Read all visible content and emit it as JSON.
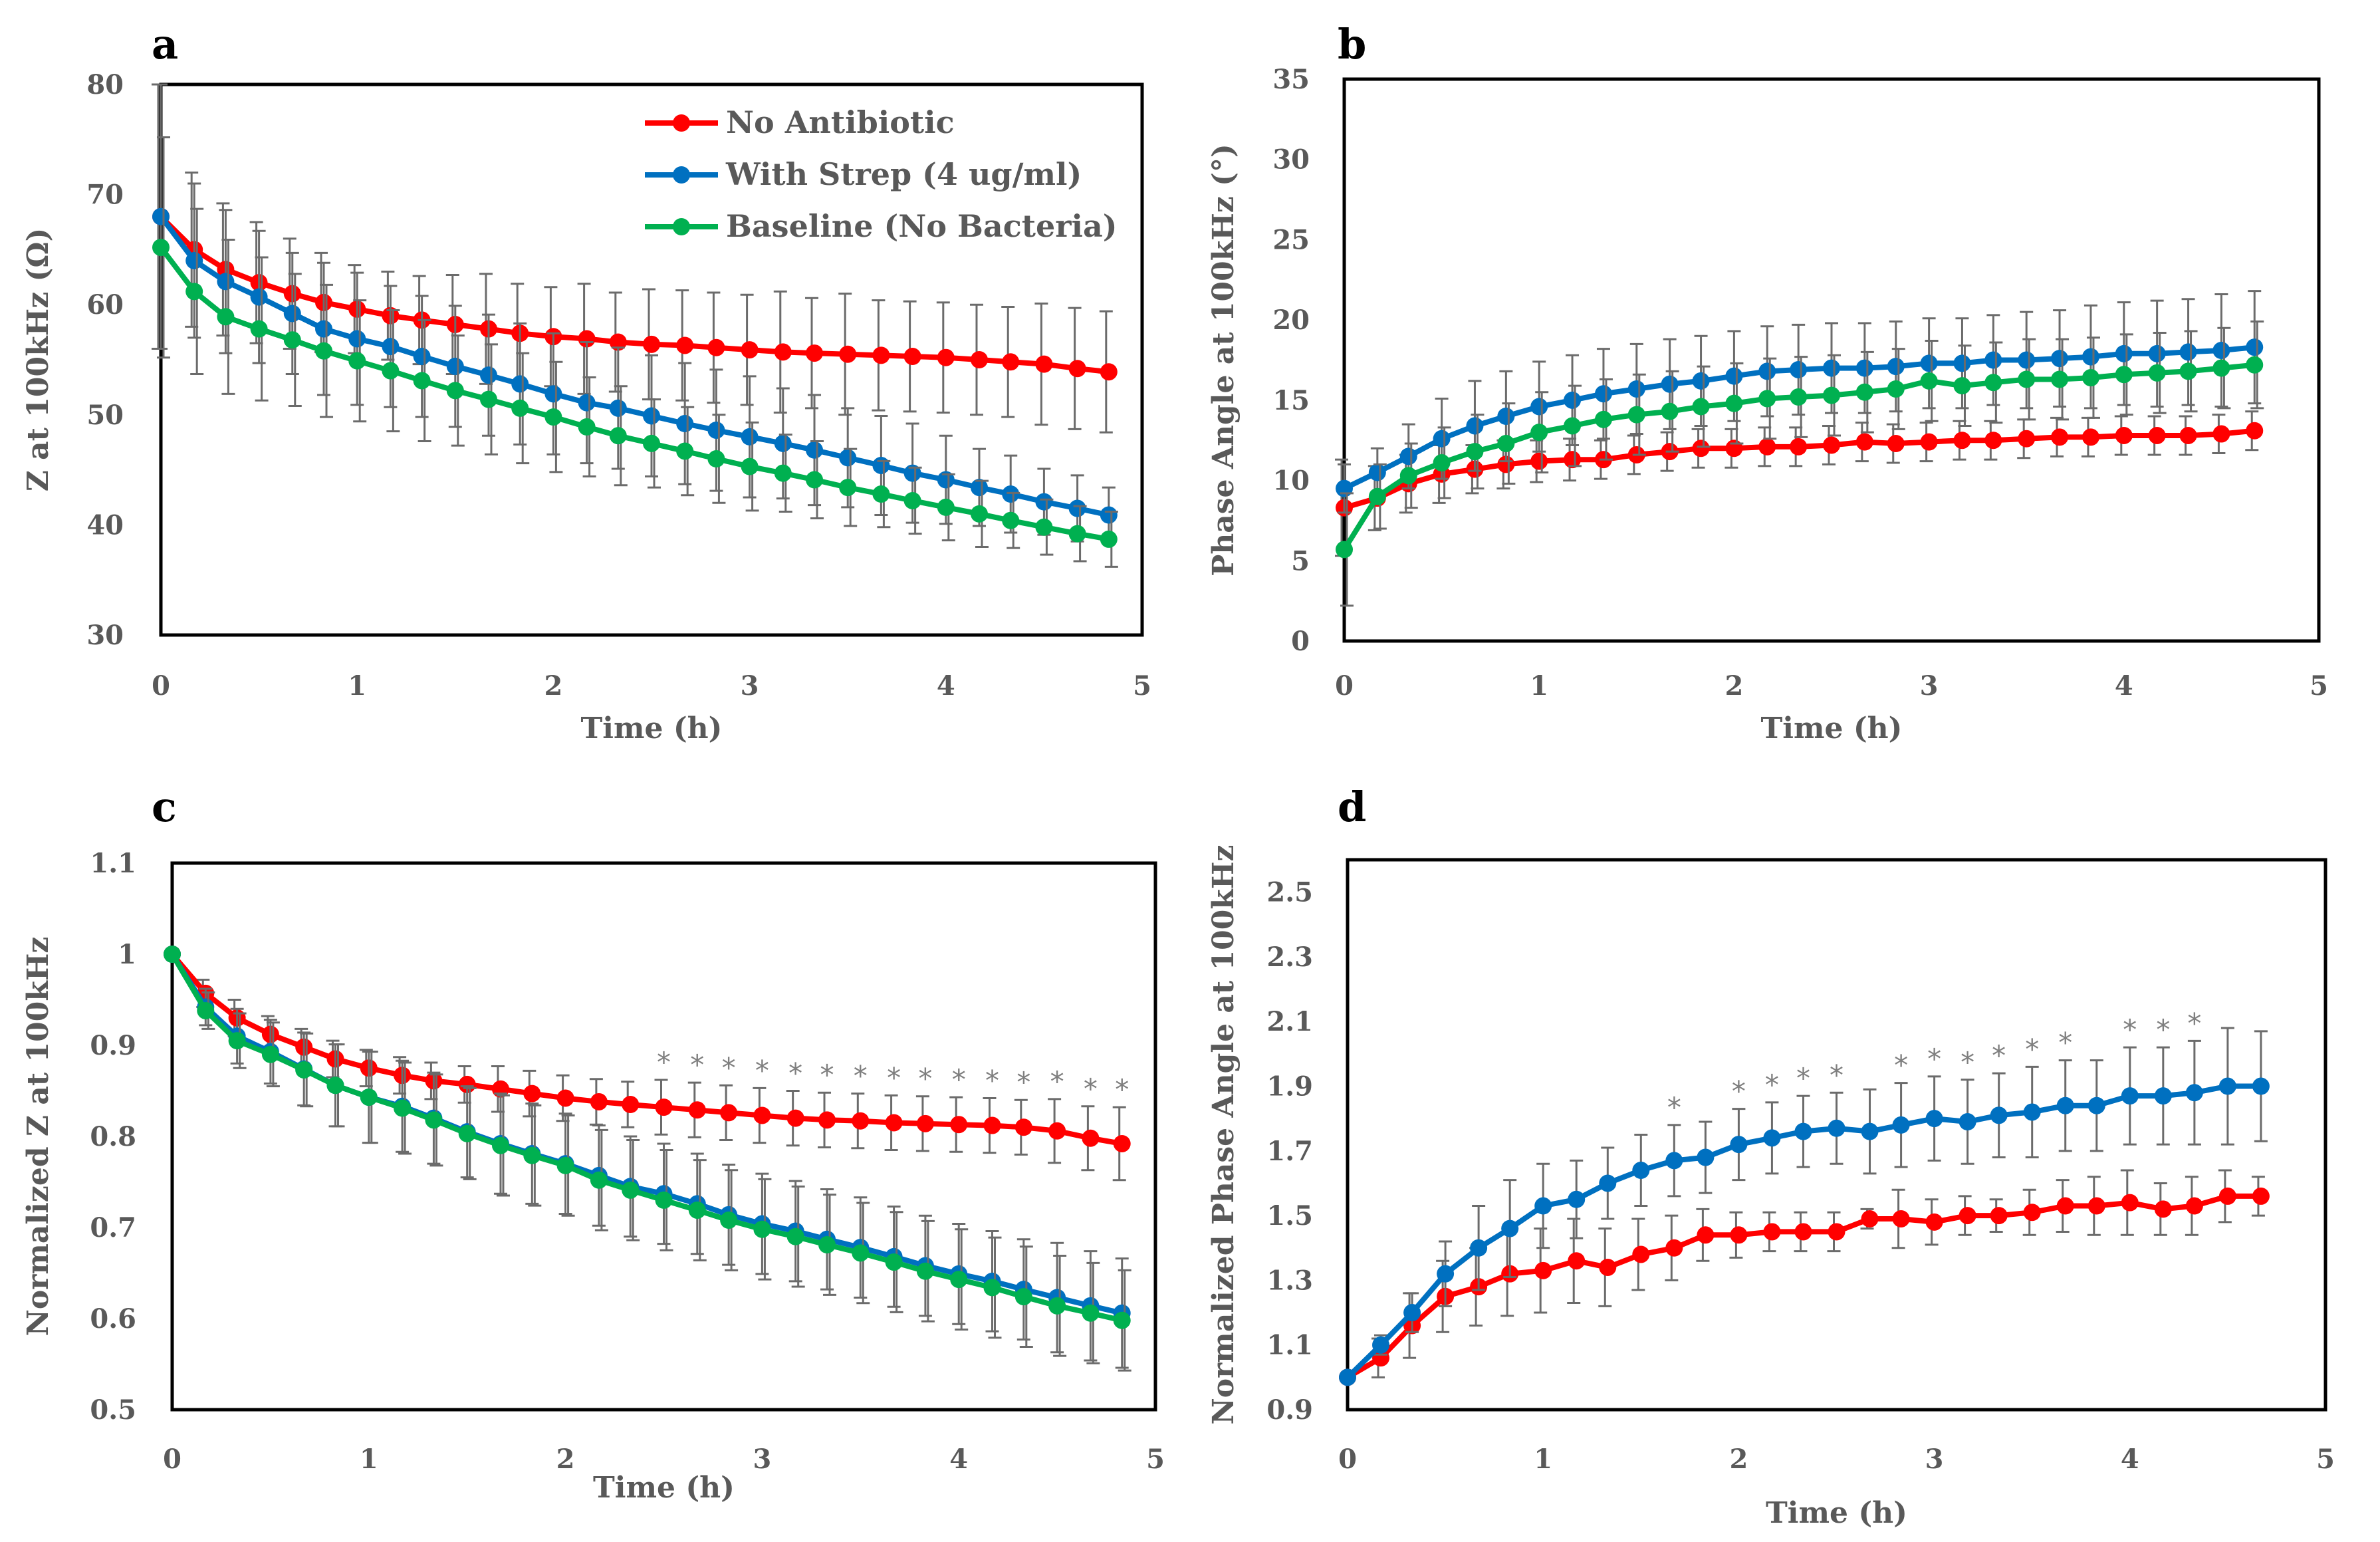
{
  "colors": {
    "no_antibiotic": "#ff0000",
    "with_strep": "#0070c0",
    "baseline": "#00b050",
    "error_bar": "#6b6b6b",
    "text": "#595959"
  },
  "chart_data": [
    {
      "panel": "a",
      "type": "line",
      "title": "",
      "xlabel": "Time (h)",
      "ylabel": "Z at 100kHz (Ω)",
      "xlim": [
        0,
        5
      ],
      "ylim": [
        30,
        80
      ],
      "xticks": [
        "0",
        "1",
        "2",
        "3",
        "4",
        "5"
      ],
      "yticks": [
        "30",
        "40",
        "50",
        "60",
        "70",
        "80"
      ],
      "grid": false,
      "legend_position": "top-center",
      "x": [
        0,
        0.17,
        0.33,
        0.5,
        0.67,
        0.83,
        1.0,
        1.17,
        1.33,
        1.5,
        1.67,
        1.83,
        2.0,
        2.17,
        2.33,
        2.5,
        2.67,
        2.83,
        3.0,
        3.17,
        3.33,
        3.5,
        3.67,
        3.83,
        4.0,
        4.17,
        4.33,
        4.5,
        4.67,
        4.83
      ],
      "series": [
        {
          "name": "No Antibiotic",
          "color_key": "no_antibiotic",
          "values": [
            68,
            65.0,
            63.2,
            62.0,
            61.0,
            60.2,
            59.6,
            59.0,
            58.6,
            58.2,
            57.8,
            57.4,
            57.1,
            56.9,
            56.6,
            56.4,
            56.3,
            56.1,
            55.9,
            55.7,
            55.6,
            55.5,
            55.4,
            55.3,
            55.2,
            55.0,
            54.8,
            54.6,
            54.2,
            53.9
          ],
          "errors": [
            12,
            7,
            6,
            5.5,
            5,
            4.5,
            4,
            4,
            4,
            4.5,
            5,
            4.5,
            4.5,
            5,
            4.5,
            5,
            5,
            5,
            5,
            5.5,
            5,
            5.5,
            5,
            5,
            5,
            5,
            5,
            5.5,
            5.5,
            5.5
          ]
        },
        {
          "name": "With Strep (4 ug/ml)",
          "color_key": "with_strep",
          "values": [
            68,
            64.0,
            62.1,
            60.7,
            59.2,
            57.8,
            56.9,
            56.2,
            55.3,
            54.4,
            53.6,
            52.8,
            51.9,
            51.1,
            50.6,
            49.9,
            49.2,
            48.6,
            48.0,
            47.4,
            46.8,
            46.1,
            45.4,
            44.7,
            44.1,
            43.4,
            42.8,
            42.1,
            41.5,
            40.9
          ],
          "errors": [
            12,
            7,
            6.5,
            6,
            5.5,
            6,
            6,
            5.5,
            5.5,
            5.5,
            5.5,
            5.5,
            5.5,
            5.5,
            5.5,
            5.5,
            5.5,
            5.5,
            5.5,
            5,
            5,
            4.5,
            4.5,
            4.5,
            4,
            3.5,
            3.5,
            3,
            3,
            2.5
          ]
        },
        {
          "name": "Baseline (No Bacteria)",
          "color_key": "baseline",
          "values": [
            65.2,
            61.2,
            58.9,
            57.8,
            56.8,
            55.8,
            54.9,
            54.0,
            53.1,
            52.2,
            51.4,
            50.6,
            49.8,
            48.9,
            48.1,
            47.4,
            46.7,
            46.0,
            45.3,
            44.7,
            44.1,
            43.4,
            42.8,
            42.2,
            41.6,
            41.0,
            40.4,
            39.8,
            39.2,
            38.7
          ],
          "errors": [
            10,
            7.5,
            7,
            6.5,
            6,
            6,
            5.5,
            5.5,
            5.5,
            5,
            5,
            5,
            5,
            4.5,
            4.5,
            4,
            4,
            4,
            4,
            3.5,
            3.5,
            3.5,
            3,
            3,
            3,
            3,
            2.5,
            2.5,
            2.5,
            2.5
          ]
        }
      ],
      "legend": [
        "No Antibiotic",
        "With Strep (4 ug/ml)",
        "Baseline (No Bacteria)"
      ]
    },
    {
      "panel": "b",
      "type": "line",
      "title": "",
      "xlabel": "Time (h)",
      "ylabel": "Phase Angle at 100kHz (°)",
      "xlim": [
        0,
        5
      ],
      "ylim": [
        0,
        35
      ],
      "xticks": [
        "0",
        "1",
        "2",
        "3",
        "4",
        "5"
      ],
      "yticks": [
        "0",
        "5",
        "10",
        "15",
        "20",
        "25",
        "30",
        "35"
      ],
      "grid": false,
      "x": [
        0,
        0.17,
        0.33,
        0.5,
        0.67,
        0.83,
        1.0,
        1.17,
        1.33,
        1.5,
        1.67,
        1.83,
        2.0,
        2.17,
        2.33,
        2.5,
        2.67,
        2.83,
        3.0,
        3.17,
        3.33,
        3.5,
        3.67,
        3.83,
        4.0,
        4.17,
        4.33,
        4.5,
        4.67
      ],
      "series": [
        {
          "name": "No Antibiotic",
          "color_key": "no_antibiotic",
          "values": [
            8.3,
            8.9,
            9.8,
            10.4,
            10.7,
            11.0,
            11.2,
            11.3,
            11.3,
            11.6,
            11.8,
            12.0,
            12.0,
            12.1,
            12.1,
            12.2,
            12.4,
            12.3,
            12.4,
            12.5,
            12.5,
            12.6,
            12.7,
            12.7,
            12.8,
            12.8,
            12.8,
            12.9,
            13.1
          ],
          "errors": [
            3,
            2,
            1.8,
            1.8,
            1.5,
            1.5,
            1.3,
            1.3,
            1.2,
            1.2,
            1.2,
            1.2,
            1.2,
            1.2,
            1.2,
            1.2,
            1.2,
            1.2,
            1.2,
            1.2,
            1.2,
            1.2,
            1.2,
            1.2,
            1.2,
            1.2,
            1.2,
            1.2,
            1.2
          ]
        },
        {
          "name": "With Strep (4 ug/ml)",
          "color_key": "with_strep",
          "values": [
            9.5,
            10.5,
            11.5,
            12.6,
            13.4,
            14.0,
            14.6,
            15.0,
            15.4,
            15.7,
            16.0,
            16.2,
            16.5,
            16.8,
            16.9,
            17.0,
            17.0,
            17.1,
            17.3,
            17.3,
            17.5,
            17.5,
            17.6,
            17.7,
            17.9,
            17.9,
            18.0,
            18.1,
            18.3
          ],
          "errors": [
            1.5,
            1.5,
            2,
            2.5,
            2.8,
            2.8,
            2.8,
            2.8,
            2.8,
            2.8,
            2.8,
            2.8,
            2.8,
            2.8,
            2.8,
            2.8,
            2.8,
            2.8,
            2.8,
            2.8,
            2.8,
            3,
            3,
            3.2,
            3.2,
            3.3,
            3.3,
            3.5,
            3.5
          ]
        },
        {
          "name": "Baseline (No Bacteria)",
          "color_key": "baseline",
          "values": [
            5.7,
            9.0,
            10.3,
            11.1,
            11.8,
            12.3,
            13.0,
            13.4,
            13.8,
            14.1,
            14.3,
            14.6,
            14.8,
            15.1,
            15.2,
            15.3,
            15.5,
            15.7,
            16.2,
            15.9,
            16.1,
            16.3,
            16.3,
            16.4,
            16.6,
            16.7,
            16.8,
            17.0,
            17.2
          ],
          "errors": [
            3.5,
            2,
            2,
            2.2,
            2.3,
            2.5,
            2.5,
            2.5,
            2.5,
            2.5,
            2.5,
            2.5,
            2.5,
            2.5,
            2.5,
            2.5,
            2.5,
            2.5,
            2.5,
            2.5,
            2.5,
            2.5,
            2.5,
            2.5,
            2.5,
            2.5,
            2.5,
            2.5,
            2.7
          ]
        }
      ]
    },
    {
      "panel": "c",
      "type": "line",
      "title": "",
      "xlabel": "Time (h)",
      "ylabel": "Normalized Z at 100kHz",
      "xlim": [
        0,
        5
      ],
      "ylim": [
        0.5,
        1.1
      ],
      "xticks": [
        "0",
        "1",
        "2",
        "3",
        "4",
        "5"
      ],
      "yticks": [
        "0.5",
        "0.6",
        "0.7",
        "0.8",
        "0.9",
        "1",
        "1.1"
      ],
      "grid": false,
      "x": [
        0,
        0.17,
        0.33,
        0.5,
        0.67,
        0.83,
        1.0,
        1.17,
        1.33,
        1.5,
        1.67,
        1.83,
        2.0,
        2.17,
        2.33,
        2.5,
        2.67,
        2.83,
        3.0,
        3.17,
        3.33,
        3.5,
        3.67,
        3.83,
        4.0,
        4.17,
        4.33,
        4.5,
        4.67,
        4.83
      ],
      "series": [
        {
          "name": "No Antibiotic",
          "color_key": "no_antibiotic",
          "values": [
            1.0,
            0.957,
            0.93,
            0.912,
            0.898,
            0.885,
            0.875,
            0.867,
            0.861,
            0.857,
            0.852,
            0.847,
            0.842,
            0.838,
            0.835,
            0.832,
            0.829,
            0.826,
            0.823,
            0.82,
            0.818,
            0.817,
            0.815,
            0.814,
            0.813,
            0.812,
            0.81,
            0.806,
            0.798,
            0.792
          ],
          "errors": [
            0,
            0.015,
            0.02,
            0.02,
            0.02,
            0.02,
            0.02,
            0.02,
            0.02,
            0.02,
            0.025,
            0.025,
            0.025,
            0.025,
            0.025,
            0.03,
            0.03,
            0.03,
            0.03,
            0.03,
            0.03,
            0.03,
            0.03,
            0.03,
            0.03,
            0.03,
            0.03,
            0.035,
            0.035,
            0.04
          ]
        },
        {
          "name": "With Strep (4 ug/ml)",
          "color_key": "with_strep",
          "values": [
            1.0,
            0.942,
            0.91,
            0.893,
            0.874,
            0.856,
            0.843,
            0.833,
            0.82,
            0.805,
            0.792,
            0.781,
            0.77,
            0.757,
            0.745,
            0.737,
            0.726,
            0.714,
            0.704,
            0.696,
            0.687,
            0.678,
            0.668,
            0.658,
            0.649,
            0.641,
            0.632,
            0.623,
            0.614,
            0.606
          ],
          "errors": [
            0,
            0.02,
            0.03,
            0.035,
            0.04,
            0.045,
            0.05,
            0.05,
            0.05,
            0.05,
            0.055,
            0.055,
            0.055,
            0.055,
            0.055,
            0.055,
            0.055,
            0.055,
            0.055,
            0.055,
            0.055,
            0.055,
            0.055,
            0.055,
            0.055,
            0.055,
            0.055,
            0.06,
            0.06,
            0.06
          ]
        },
        {
          "name": "Baseline (No Bacteria)",
          "color_key": "baseline",
          "values": [
            1.0,
            0.938,
            0.905,
            0.89,
            0.873,
            0.856,
            0.843,
            0.831,
            0.818,
            0.803,
            0.79,
            0.779,
            0.768,
            0.752,
            0.741,
            0.73,
            0.719,
            0.708,
            0.698,
            0.69,
            0.681,
            0.672,
            0.662,
            0.652,
            0.643,
            0.634,
            0.624,
            0.614,
            0.606,
            0.598
          ],
          "errors": [
            0,
            0.02,
            0.03,
            0.035,
            0.04,
            0.045,
            0.05,
            0.05,
            0.05,
            0.05,
            0.055,
            0.055,
            0.055,
            0.055,
            0.055,
            0.055,
            0.055,
            0.055,
            0.055,
            0.055,
            0.055,
            0.055,
            0.055,
            0.055,
            0.055,
            0.055,
            0.055,
            0.055,
            0.055,
            0.055
          ]
        }
      ],
      "annotations": {
        "marker": "*",
        "series_index": 0,
        "x": [
          2.5,
          2.67,
          2.83,
          3.0,
          3.17,
          3.33,
          3.5,
          3.67,
          3.83,
          4.0,
          4.17,
          4.33,
          4.5,
          4.67,
          4.83
        ]
      }
    },
    {
      "panel": "d",
      "type": "line",
      "title": "",
      "xlabel": "Time (h)",
      "ylabel": "Normalized Phase Angle at 100kHz",
      "xlim": [
        0,
        5
      ],
      "ylim": [
        0.9,
        2.6
      ],
      "xticks": [
        "0",
        "1",
        "2",
        "3",
        "4",
        "5"
      ],
      "yticks": [
        "0.9",
        "1.1",
        "1.3",
        "1.5",
        "1.7",
        "1.9",
        "2.1",
        "2.3",
        "2.5"
      ],
      "grid": false,
      "x": [
        0,
        0.17,
        0.33,
        0.5,
        0.67,
        0.83,
        1.0,
        1.17,
        1.33,
        1.5,
        1.67,
        1.83,
        2.0,
        2.17,
        2.33,
        2.5,
        2.67,
        2.83,
        3.0,
        3.17,
        3.33,
        3.5,
        3.67,
        3.83,
        4.0,
        4.17,
        4.33,
        4.5,
        4.67
      ],
      "series": [
        {
          "name": "No Antibiotic",
          "color_key": "no_antibiotic",
          "values": [
            1.0,
            1.06,
            1.16,
            1.25,
            1.28,
            1.32,
            1.33,
            1.36,
            1.34,
            1.38,
            1.4,
            1.44,
            1.44,
            1.45,
            1.45,
            1.45,
            1.49,
            1.49,
            1.48,
            1.5,
            1.5,
            1.51,
            1.53,
            1.53,
            1.54,
            1.52,
            1.53,
            1.56,
            1.56
          ],
          "errors": [
            0,
            0.06,
            0.1,
            0.11,
            0.12,
            0.13,
            0.13,
            0.13,
            0.12,
            0.11,
            0.1,
            0.08,
            0.07,
            0.06,
            0.06,
            0.06,
            0.03,
            0.09,
            0.07,
            0.06,
            0.05,
            0.07,
            0.08,
            0.09,
            0.1,
            0.08,
            0.09,
            0.08,
            0.06
          ]
        },
        {
          "name": "With Strep (4 ug/ml)",
          "color_key": "with_strep",
          "values": [
            1.0,
            1.1,
            1.2,
            1.32,
            1.4,
            1.46,
            1.53,
            1.55,
            1.6,
            1.64,
            1.67,
            1.68,
            1.72,
            1.74,
            1.76,
            1.77,
            1.76,
            1.78,
            1.8,
            1.79,
            1.81,
            1.82,
            1.84,
            1.84,
            1.87,
            1.87,
            1.88,
            1.9,
            1.9
          ],
          "errors": [
            0,
            0.03,
            0.06,
            0.1,
            0.13,
            0.15,
            0.13,
            0.12,
            0.11,
            0.11,
            0.11,
            0.11,
            0.11,
            0.11,
            0.11,
            0.11,
            0.13,
            0.13,
            0.13,
            0.13,
            0.13,
            0.14,
            0.14,
            0.14,
            0.15,
            0.15,
            0.16,
            0.18,
            0.17
          ]
        }
      ],
      "annotations": {
        "marker": "*",
        "series_index": 1,
        "x": [
          1.67,
          2.0,
          2.17,
          2.33,
          2.5,
          2.83,
          3.0,
          3.17,
          3.33,
          3.5,
          3.67,
          4.0,
          4.17,
          4.33
        ]
      }
    }
  ]
}
